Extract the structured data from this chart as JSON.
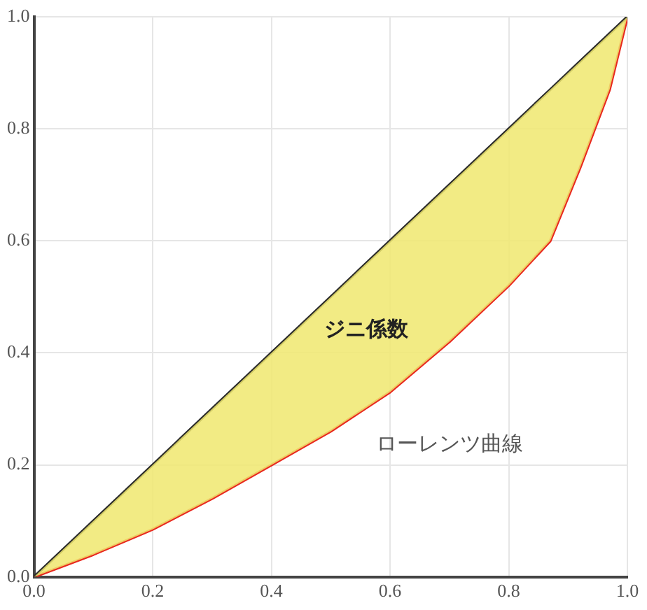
{
  "chart_data": {
    "type": "line",
    "xlim": [
      0,
      1
    ],
    "ylim": [
      0,
      1
    ],
    "xticks": [
      {
        "value": 0,
        "label": "0.0"
      },
      0.2,
      0.4,
      0.6,
      0.8,
      {
        "value": 1,
        "label": "1.0"
      }
    ],
    "yticks": [
      {
        "value": 0,
        "label": "0.0"
      },
      0.2,
      0.4,
      0.6,
      0.8,
      {
        "value": 1,
        "label": "1.0"
      }
    ],
    "grid": true,
    "legend": false,
    "marker": "none",
    "line_style": "solid",
    "annotations": [
      "ジニ係数"
    ],
    "series": [
      {
        "color": "#2a2a2a",
        "x": [
          0,
          0.05,
          0.1,
          0.2,
          0.3,
          0.4,
          0.5,
          0.6,
          0.7,
          0.8,
          0.87,
          0.92,
          0.97,
          1
        ],
        "values": [
          0,
          0.05,
          0.1,
          0.2,
          0.3,
          0.4,
          0.5,
          0.6,
          0.7,
          0.8,
          0.87,
          0.92,
          0.97,
          1
        ],
        "lower": [
          0,
          0.02,
          0.04,
          0.085,
          0.14,
          0.2,
          0.26,
          0.33,
          0.42,
          0.52,
          0.6,
          0.73,
          0.87,
          1
        ],
        "upper": [
          0,
          0.05,
          0.1,
          0.2,
          0.3,
          0.4,
          0.5,
          0.6,
          0.7,
          0.8,
          0.87,
          0.92,
          0.97,
          1
        ]
      },
      {
        "name": "ローレンツ曲線",
        "color": "#e8281e",
        "x": [
          0,
          0.05,
          0.1,
          0.2,
          0.3,
          0.4,
          0.5,
          0.6,
          0.7,
          0.8,
          0.87,
          0.92,
          0.97,
          1
        ],
        "values": [
          0,
          0.02,
          0.04,
          0.085,
          0.14,
          0.2,
          0.26,
          0.33,
          0.42,
          0.52,
          0.6,
          0.73,
          0.87,
          1
        ]
      }
    ]
  }
}
